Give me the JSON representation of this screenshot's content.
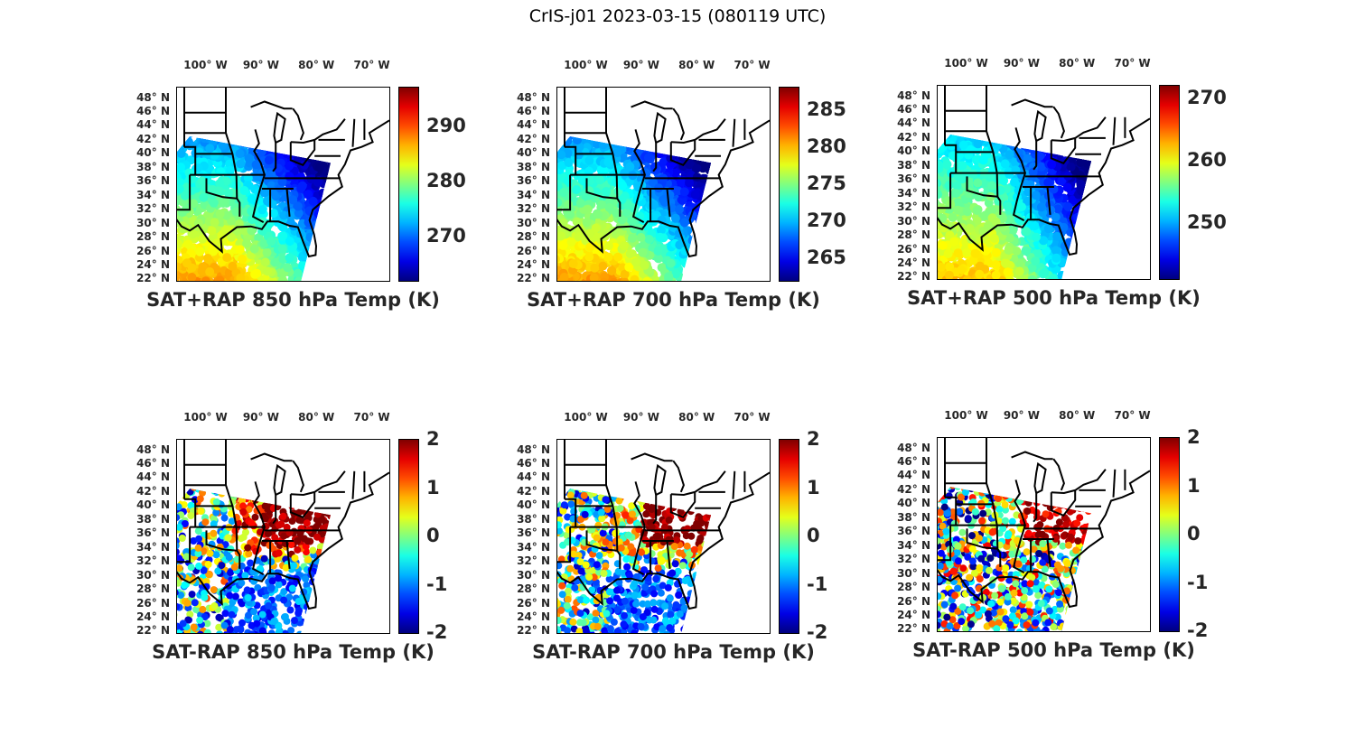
{
  "figure_title": "CrIS-j01 2023-03-15 (080119 UTC)",
  "lon_labels": [
    "100° W",
    "90° W",
    "80° W",
    "70° W"
  ],
  "lon_values": [
    -100,
    -90,
    -80,
    -70
  ],
  "lat_labels": [
    "48° N",
    "46° N",
    "44° N",
    "42° N",
    "40° N",
    "38° N",
    "36° N",
    "34° N",
    "32° N",
    "30° N",
    "28° N",
    "26° N",
    "24° N",
    "22° N"
  ],
  "lat_values": [
    48,
    46,
    44,
    42,
    40,
    38,
    36,
    34,
    32,
    30,
    28,
    26,
    24,
    22
  ],
  "map_extent": {
    "lon": [
      -105.3,
      -67
    ],
    "lat": [
      21.8,
      49.5
    ]
  },
  "colormap": "jet",
  "panels": [
    {
      "title": "SAT+RAP 850 hPa Temp (K)",
      "kind": "total",
      "clim": [
        262,
        297
      ],
      "ticks": [
        "270",
        "280",
        "290"
      ],
      "tick_values": [
        270,
        280,
        290
      ]
    },
    {
      "title": "SAT+RAP 700 hPa Temp (K)",
      "kind": "total",
      "clim": [
        262,
        288
      ],
      "ticks": [
        "265",
        "270",
        "275",
        "280",
        "285"
      ],
      "tick_values": [
        265,
        270,
        275,
        280,
        285
      ]
    },
    {
      "title": "SAT+RAP 500 hPa Temp (K)",
      "kind": "total",
      "clim": [
        241,
        272
      ],
      "ticks": [
        "250",
        "260",
        "270"
      ],
      "tick_values": [
        250,
        260,
        270
      ]
    },
    {
      "title": "SAT-RAP 850 hPa Temp (K)",
      "kind": "diff",
      "clim": [
        -2,
        2
      ],
      "ticks": [
        "2",
        "1",
        "0",
        "-1",
        "-2"
      ],
      "tick_values": [
        2,
        1,
        0,
        -1,
        -2
      ]
    },
    {
      "title": "SAT-RAP 700 hPa Temp (K)",
      "kind": "diff",
      "clim": [
        -2,
        2
      ],
      "ticks": [
        "2",
        "1",
        "0",
        "-1",
        "-2"
      ],
      "tick_values": [
        2,
        1,
        0,
        -1,
        -2
      ]
    },
    {
      "title": "SAT-RAP 500 hPa Temp (K)",
      "kind": "diff",
      "clim": [
        -2,
        2
      ],
      "ticks": [
        "2",
        "1",
        "0",
        "-1",
        "-2"
      ],
      "tick_values": [
        2,
        1,
        0,
        -1,
        -2
      ]
    }
  ]
}
